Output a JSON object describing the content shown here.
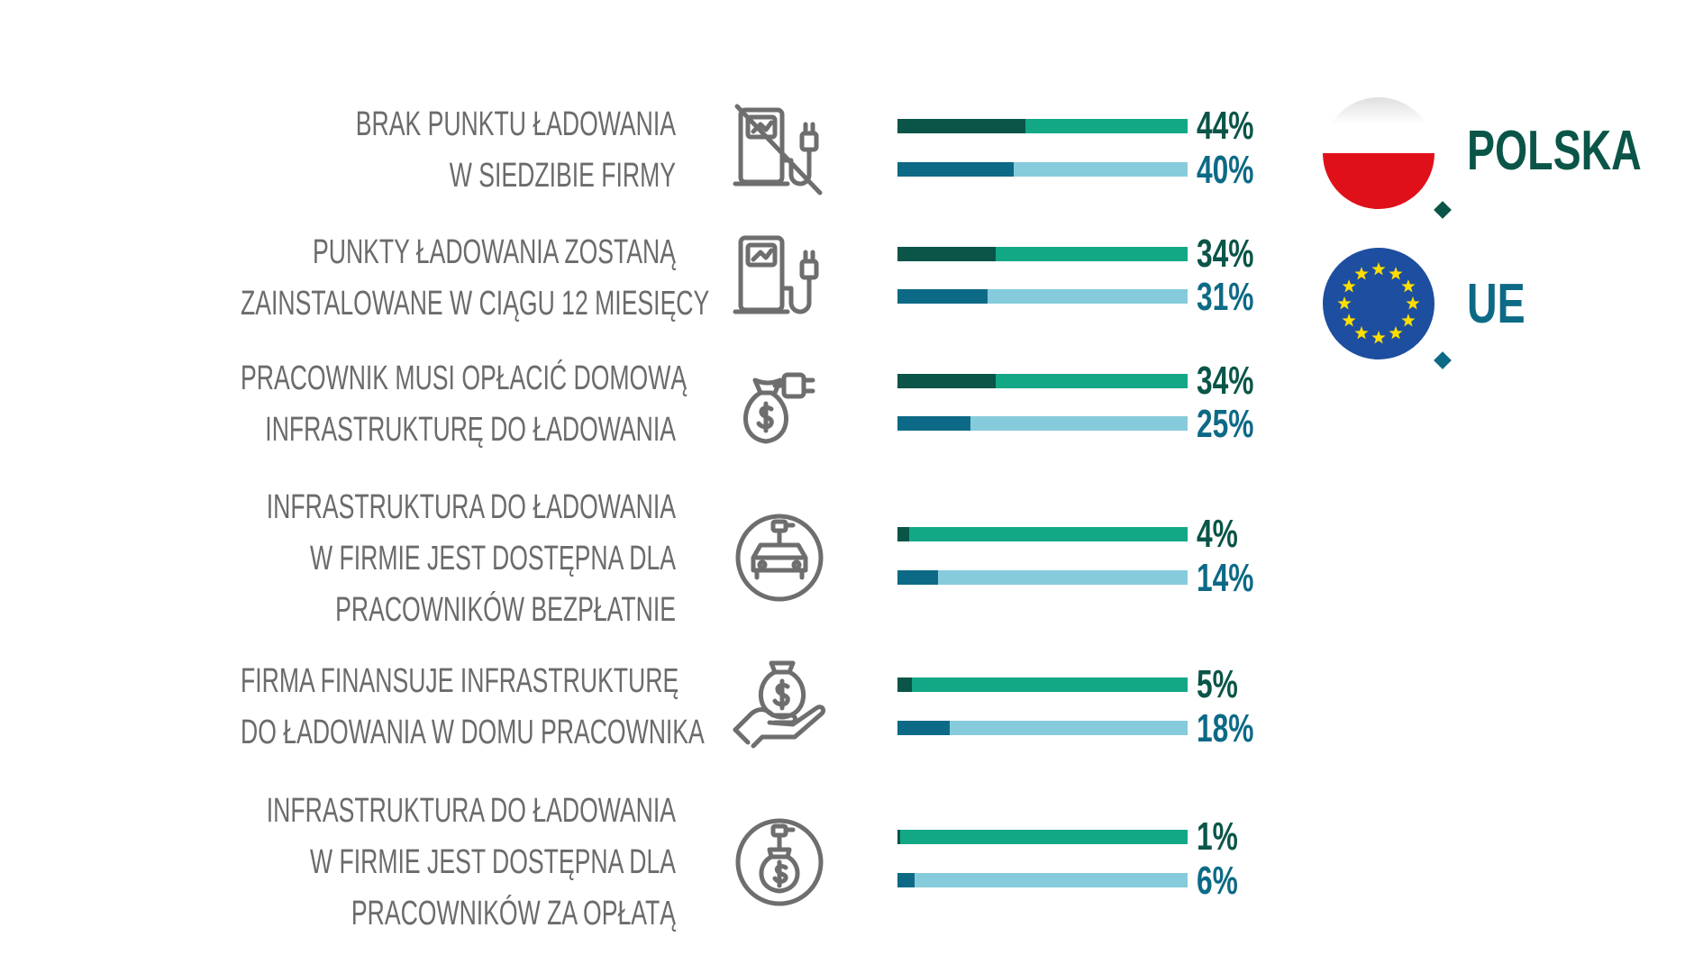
{
  "colors": {
    "label_gray": "#6b6b6b",
    "icon_gray": "#6e6e6e",
    "pl_dark": "#0a5548",
    "pl_light": "#12a886",
    "eu_dark": "#0d6a86",
    "eu_light": "#86cbdc",
    "pl_text": "#0a5548",
    "eu_text": "#0d6a86",
    "flag_red": "#e0101a",
    "eu_blue": "#1d4ea0",
    "eu_star": "#ffde00"
  },
  "legend": {
    "poland": "POLSKA",
    "eu": "UE"
  },
  "chart_data": {
    "type": "bar",
    "orientation": "horizontal",
    "xlim": [
      0,
      100
    ],
    "series": [
      {
        "name": "POLSKA",
        "values": [
          44,
          34,
          34,
          4,
          5,
          1
        ],
        "labels": [
          "44%",
          "34%",
          "34%",
          "4%",
          "5%",
          "1%"
        ]
      },
      {
        "name": "UE",
        "values": [
          40,
          31,
          25,
          14,
          18,
          6
        ],
        "labels": [
          "40%",
          "31%",
          "25%",
          "14%",
          "18%",
          "6%"
        ]
      }
    ],
    "categories": [
      {
        "lines": [
          "BRAK PUNKTU ŁADOWANIA",
          "W SIEDZIBIE FIRMY"
        ],
        "icon": "no-charging-station-icon"
      },
      {
        "lines": [
          "PUNKTY ŁADOWANIA ZOSTANĄ",
          "ZAINSTALOWANE W CIĄGU 12 MIESIĘCY"
        ],
        "icon": "charging-station-icon"
      },
      {
        "lines": [
          "PRACOWNIK MUSI OPŁACIĆ DOMOWĄ",
          "INFRASTRUKTURĘ DO ŁADOWANIA"
        ],
        "icon": "money-bag-plug-icon"
      },
      {
        "lines": [
          "INFRASTRUKTURA DO ŁADOWANIA",
          "W FIRMIE JEST DOSTĘPNA DLA",
          "PRACOWNIKÓW BEZPŁATNIE"
        ],
        "icon": "electric-car-icon"
      },
      {
        "lines": [
          "FIRMA FINANSUJE INFRASTRUKTURĘ",
          "DO ŁADOWANIA W DOMU PRACOWNIKA"
        ],
        "icon": "hand-money-bag-icon"
      },
      {
        "lines": [
          "INFRASTRUKTURA DO ŁADOWANIA",
          "W FIRMIE JEST DOSTĘPNA DLA",
          "PRACOWNIKÓW ZA OPŁATĄ"
        ],
        "icon": "paid-plug-icon"
      }
    ]
  }
}
